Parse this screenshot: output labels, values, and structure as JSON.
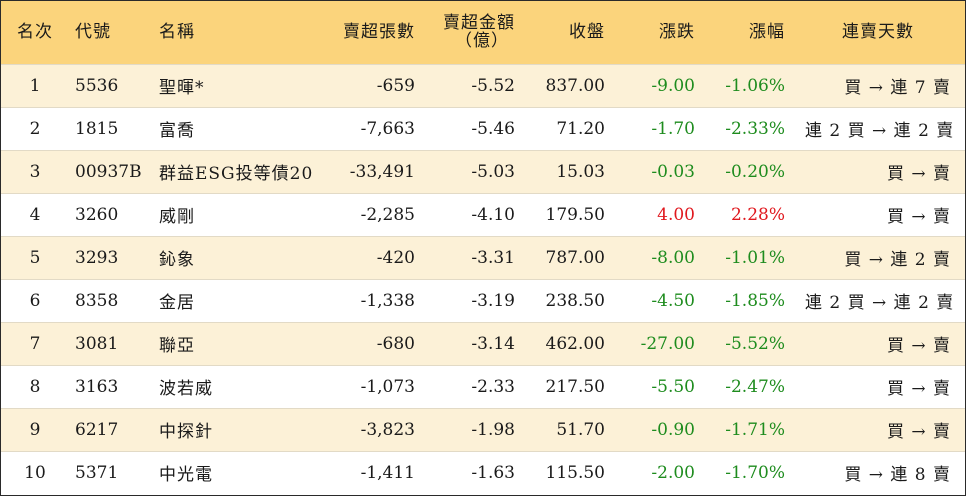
{
  "headers": {
    "rank": "名次",
    "code": "代號",
    "name": "名稱",
    "sell_shares": "賣超張數",
    "sell_amount_line1": "賣超金額",
    "sell_amount_line2": "（億）",
    "close": "收盤",
    "change": "漲跌",
    "change_pct": "漲幅",
    "days": "連賣天數"
  },
  "rows": [
    {
      "rank": "1",
      "code": "5536",
      "name": "聖暉*",
      "sell_shares": "-659",
      "sell_amount": "-5.52",
      "close": "837.00",
      "change": "-9.00",
      "change_pct": "-1.06%",
      "days": "買 → 連 7 賣"
    },
    {
      "rank": "2",
      "code": "1815",
      "name": "富喬",
      "sell_shares": "-7,663",
      "sell_amount": "-5.46",
      "close": "71.20",
      "change": "-1.70",
      "change_pct": "-2.33%",
      "days": "連 2 買 → 連 2 賣"
    },
    {
      "rank": "3",
      "code": "00937B",
      "name": "群益ESG投等債20",
      "sell_shares": "-33,491",
      "sell_amount": "-5.03",
      "close": "15.03",
      "change": "-0.03",
      "change_pct": "-0.20%",
      "days": "買 → 賣"
    },
    {
      "rank": "4",
      "code": "3260",
      "name": "威剛",
      "sell_shares": "-2,285",
      "sell_amount": "-4.10",
      "close": "179.50",
      "change": "4.00",
      "change_pct": "2.28%",
      "days": "買 → 賣"
    },
    {
      "rank": "5",
      "code": "3293",
      "name": "鈊象",
      "sell_shares": "-420",
      "sell_amount": "-3.31",
      "close": "787.00",
      "change": "-8.00",
      "change_pct": "-1.01%",
      "days": "買 → 連 2 賣"
    },
    {
      "rank": "6",
      "code": "8358",
      "name": "金居",
      "sell_shares": "-1,338",
      "sell_amount": "-3.19",
      "close": "238.50",
      "change": "-4.50",
      "change_pct": "-1.85%",
      "days": "連 2 買 → 連 2 賣"
    },
    {
      "rank": "7",
      "code": "3081",
      "name": "聯亞",
      "sell_shares": "-680",
      "sell_amount": "-3.14",
      "close": "462.00",
      "change": "-27.00",
      "change_pct": "-5.52%",
      "days": "買 → 賣"
    },
    {
      "rank": "8",
      "code": "3163",
      "name": "波若威",
      "sell_shares": "-1,073",
      "sell_amount": "-2.33",
      "close": "217.50",
      "change": "-5.50",
      "change_pct": "-2.47%",
      "days": "買 → 賣"
    },
    {
      "rank": "9",
      "code": "6217",
      "name": "中探針",
      "sell_shares": "-3,823",
      "sell_amount": "-1.98",
      "close": "51.70",
      "change": "-0.90",
      "change_pct": "-1.71%",
      "days": "買 → 賣"
    },
    {
      "rank": "10",
      "code": "5371",
      "name": "中光電",
      "sell_shares": "-1,411",
      "sell_amount": "-1.63",
      "close": "115.50",
      "change": "-2.00",
      "change_pct": "-1.70%",
      "days": "買 → 連 8 賣"
    }
  ],
  "colors": {
    "header_bg": "#fbd47c",
    "stripe_bg": "#fcf1d7",
    "down": "#1e8c1e",
    "up": "#e0181e"
  }
}
